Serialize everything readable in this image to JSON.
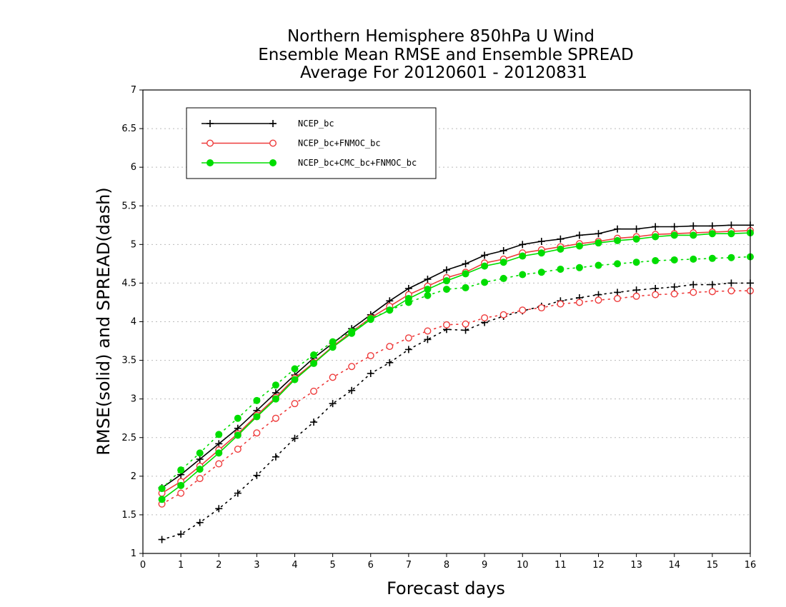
{
  "chart_data": {
    "type": "line",
    "title_lines": [
      "Northern Hemisphere 850hPa U Wind",
      "Ensemble Mean RMSE and Ensemble SPREAD",
      "Average For 20120601 - 20120831"
    ],
    "xlabel": "Forecast days",
    "ylabel": "RMSE(solid) and SPREAD(dash)",
    "xlim": [
      0,
      16
    ],
    "ylim": [
      1,
      7
    ],
    "x_ticks": [
      "0",
      "1",
      "2",
      "3",
      "4",
      "5",
      "6",
      "7",
      "8",
      "9",
      "10",
      "11",
      "12",
      "13",
      "14",
      "15",
      "16"
    ],
    "y_ticks": [
      "1",
      "1.5",
      "2",
      "2.5",
      "3",
      "3.5",
      "4",
      "4.5",
      "5",
      "5.5",
      "6",
      "6.5",
      "7"
    ],
    "grid": "horizontal dotted",
    "legend_position": "top-left",
    "x": [
      0.5,
      1,
      1.5,
      2,
      2.5,
      3,
      3.5,
      4,
      4.5,
      5,
      5.5,
      6,
      6.5,
      7,
      7.5,
      8,
      8.5,
      9,
      9.5,
      10,
      10.5,
      11,
      11.5,
      12,
      12.5,
      13,
      13.5,
      14,
      14.5,
      15,
      15.5,
      16
    ],
    "series": [
      {
        "name": "NCEP_bc",
        "color": "#000000",
        "marker": "plus",
        "rmse": [
          1.85,
          2.02,
          2.22,
          2.42,
          2.62,
          2.85,
          3.08,
          3.31,
          3.53,
          3.72,
          3.91,
          4.09,
          4.27,
          4.43,
          4.55,
          4.67,
          4.75,
          4.86,
          4.92,
          5.0,
          5.04,
          5.07,
          5.12,
          5.14,
          5.2,
          5.2,
          5.23,
          5.23,
          5.24,
          5.24,
          5.25,
          5.25
        ],
        "spread": [
          1.18,
          1.25,
          1.4,
          1.58,
          1.78,
          2.01,
          2.25,
          2.49,
          2.7,
          2.94,
          3.11,
          3.33,
          3.47,
          3.64,
          3.77,
          3.9,
          3.89,
          3.99,
          4.07,
          4.14,
          4.2,
          4.27,
          4.31,
          4.35,
          4.38,
          4.41,
          4.43,
          4.45,
          4.48,
          4.48,
          4.5,
          4.5
        ]
      },
      {
        "name": "NCEP_bc+FNMOC_bc",
        "color": "#ee3b3b",
        "marker": "open-circle",
        "rmse": [
          1.78,
          1.93,
          2.13,
          2.34,
          2.55,
          2.79,
          3.02,
          3.27,
          3.47,
          3.68,
          3.87,
          4.05,
          4.2,
          4.35,
          4.46,
          4.57,
          4.64,
          4.76,
          4.81,
          4.89,
          4.93,
          4.97,
          5.01,
          5.04,
          5.08,
          5.1,
          5.13,
          5.14,
          5.15,
          5.16,
          5.17,
          5.18
        ],
        "spread": [
          1.64,
          1.78,
          1.97,
          2.16,
          2.35,
          2.56,
          2.75,
          2.94,
          3.1,
          3.28,
          3.42,
          3.56,
          3.68,
          3.79,
          3.88,
          3.96,
          3.97,
          4.05,
          4.09,
          4.15,
          4.18,
          4.23,
          4.25,
          4.28,
          4.3,
          4.33,
          4.35,
          4.36,
          4.38,
          4.39,
          4.4,
          4.4
        ]
      },
      {
        "name": "NCEP_bc+CMC_bc+FNMOC_bc",
        "color": "#00dd00",
        "marker": "filled-circle",
        "rmse": [
          1.7,
          1.88,
          2.09,
          2.3,
          2.53,
          2.77,
          3.0,
          3.25,
          3.46,
          3.67,
          3.85,
          4.03,
          4.15,
          4.3,
          4.42,
          4.53,
          4.62,
          4.72,
          4.77,
          4.85,
          4.89,
          4.94,
          4.98,
          5.02,
          5.05,
          5.07,
          5.1,
          5.12,
          5.12,
          5.14,
          5.14,
          5.15
        ],
        "spread": [
          1.84,
          2.08,
          2.3,
          2.54,
          2.75,
          2.98,
          3.18,
          3.39,
          3.57,
          3.74,
          3.87,
          4.04,
          4.15,
          4.25,
          4.34,
          4.42,
          4.44,
          4.51,
          4.56,
          4.61,
          4.64,
          4.68,
          4.7,
          4.73,
          4.75,
          4.77,
          4.79,
          4.8,
          4.81,
          4.82,
          4.83,
          4.84
        ]
      }
    ]
  }
}
